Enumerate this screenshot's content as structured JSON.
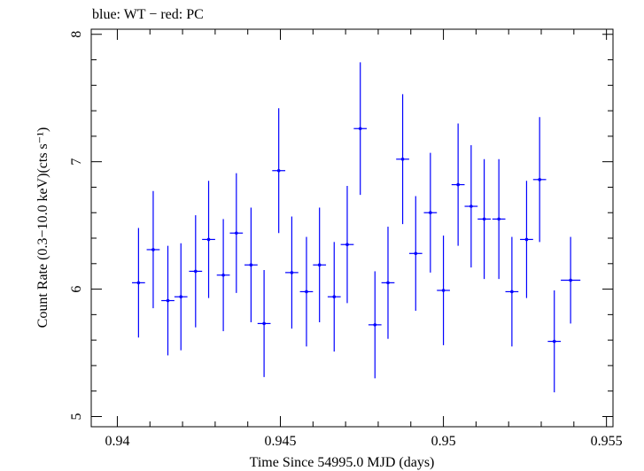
{
  "chart_data": {
    "type": "scatter",
    "title": "blue: WT − red: PC",
    "xlabel": "Time Since 54995.0 MJD (days)",
    "ylabel": "Count Rate (0.3−10.0 keV)(cts s⁻¹)",
    "xlim": [
      0.9392,
      0.9552
    ],
    "ylim": [
      4.92,
      8.04
    ],
    "x_ticks": [
      0.94,
      0.945,
      0.95,
      0.955
    ],
    "x_tick_labels": [
      "0.94",
      "0.945",
      "0.95",
      "0.955"
    ],
    "y_ticks": [
      5,
      6,
      7,
      8
    ],
    "y_tick_labels": [
      "5",
      "6",
      "7",
      "8"
    ],
    "grid": false,
    "series": [
      {
        "name": "WT",
        "color": "#0000ff",
        "points": [
          {
            "x": 0.94065,
            "xerr": 0.0002,
            "y": 6.05,
            "yerr": 0.43
          },
          {
            "x": 0.9411,
            "xerr": 0.0002,
            "y": 6.31,
            "yerr": 0.46
          },
          {
            "x": 0.94155,
            "xerr": 0.0002,
            "y": 5.91,
            "yerr": 0.43
          },
          {
            "x": 0.94195,
            "xerr": 0.0002,
            "y": 5.94,
            "yerr": 0.42
          },
          {
            "x": 0.9424,
            "xerr": 0.0002,
            "y": 6.14,
            "yerr": 0.44
          },
          {
            "x": 0.9428,
            "xerr": 0.0002,
            "y": 6.39,
            "yerr": 0.46
          },
          {
            "x": 0.94325,
            "xerr": 0.0002,
            "y": 6.11,
            "yerr": 0.44
          },
          {
            "x": 0.94365,
            "xerr": 0.0002,
            "y": 6.44,
            "yerr": 0.47
          },
          {
            "x": 0.9441,
            "xerr": 0.0002,
            "y": 6.19,
            "yerr": 0.45
          },
          {
            "x": 0.9445,
            "xerr": 0.0002,
            "y": 5.73,
            "yerr": 0.42
          },
          {
            "x": 0.94495,
            "xerr": 0.0002,
            "y": 6.93,
            "yerr": 0.49
          },
          {
            "x": 0.94535,
            "xerr": 0.0002,
            "y": 6.13,
            "yerr": 0.44
          },
          {
            "x": 0.9458,
            "xerr": 0.0002,
            "y": 5.98,
            "yerr": 0.43
          },
          {
            "x": 0.9462,
            "xerr": 0.0002,
            "y": 6.19,
            "yerr": 0.45
          },
          {
            "x": 0.94665,
            "xerr": 0.0002,
            "y": 5.94,
            "yerr": 0.43
          },
          {
            "x": 0.94705,
            "xerr": 0.0002,
            "y": 6.35,
            "yerr": 0.46
          },
          {
            "x": 0.94745,
            "xerr": 0.0002,
            "y": 7.26,
            "yerr": 0.52
          },
          {
            "x": 0.9479,
            "xerr": 0.0002,
            "y": 5.72,
            "yerr": 0.42
          },
          {
            "x": 0.9483,
            "xerr": 0.0002,
            "y": 6.05,
            "yerr": 0.44
          },
          {
            "x": 0.94875,
            "xerr": 0.0002,
            "y": 7.02,
            "yerr": 0.51
          },
          {
            "x": 0.94915,
            "xerr": 0.0002,
            "y": 6.28,
            "yerr": 0.45
          },
          {
            "x": 0.9496,
            "xerr": 0.0002,
            "y": 6.6,
            "yerr": 0.47
          },
          {
            "x": 0.95,
            "xerr": 0.0002,
            "y": 5.99,
            "yerr": 0.43
          },
          {
            "x": 0.95045,
            "xerr": 0.0002,
            "y": 6.82,
            "yerr": 0.48
          },
          {
            "x": 0.95085,
            "xerr": 0.0002,
            "y": 6.65,
            "yerr": 0.48
          },
          {
            "x": 0.95125,
            "xerr": 0.0002,
            "y": 6.55,
            "yerr": 0.47
          },
          {
            "x": 0.9517,
            "xerr": 0.0002,
            "y": 6.55,
            "yerr": 0.47
          },
          {
            "x": 0.9521,
            "xerr": 0.0002,
            "y": 5.98,
            "yerr": 0.43
          },
          {
            "x": 0.95255,
            "xerr": 0.0002,
            "y": 6.39,
            "yerr": 0.46
          },
          {
            "x": 0.95295,
            "xerr": 0.0002,
            "y": 6.86,
            "yerr": 0.49
          },
          {
            "x": 0.9534,
            "xerr": 0.0002,
            "y": 5.59,
            "yerr": 0.4
          },
          {
            "x": 0.9539,
            "xerr": 0.0003,
            "y": 6.07,
            "yerr": 0.34
          }
        ]
      }
    ]
  }
}
